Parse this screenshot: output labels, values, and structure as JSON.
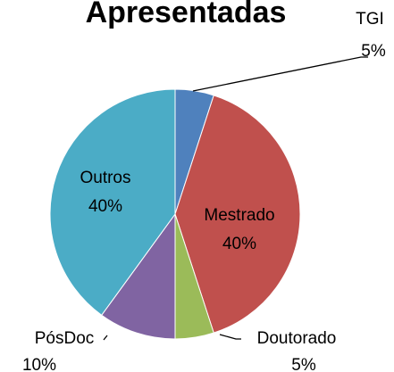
{
  "chart_data": {
    "type": "pie",
    "title": "Apresentadas",
    "categories": [
      "TGI",
      "Mestrado",
      "Doutorado",
      "PósDoc",
      "Outros"
    ],
    "values": [
      5,
      40,
      5,
      10,
      40
    ],
    "value_labels": [
      "5%",
      "40%",
      "5%",
      "10%",
      "40%"
    ],
    "colors": [
      "#4f81bd",
      "#c0504d",
      "#9bbb59",
      "#8064a2",
      "#4bacc6"
    ]
  }
}
